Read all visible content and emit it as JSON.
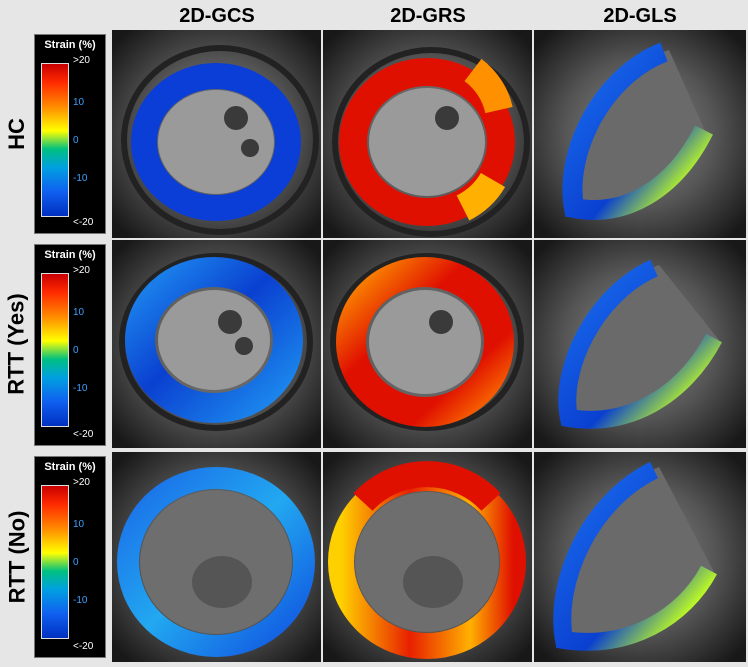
{
  "columns": [
    "2D-GCS",
    "2D-GRS",
    "2D-GLS"
  ],
  "rows": [
    "HC",
    "RTT (Yes)",
    "RTT (No)"
  ],
  "legend": {
    "title": "Strain (%)",
    "ticks": [
      ">20",
      "10",
      "0",
      "-10",
      "<-20"
    ]
  },
  "colors": {
    "strain_max": "#cc0000",
    "strain_zero": "#e0e000",
    "strain_min": "#0030c0",
    "background": "#e6e6e6"
  }
}
